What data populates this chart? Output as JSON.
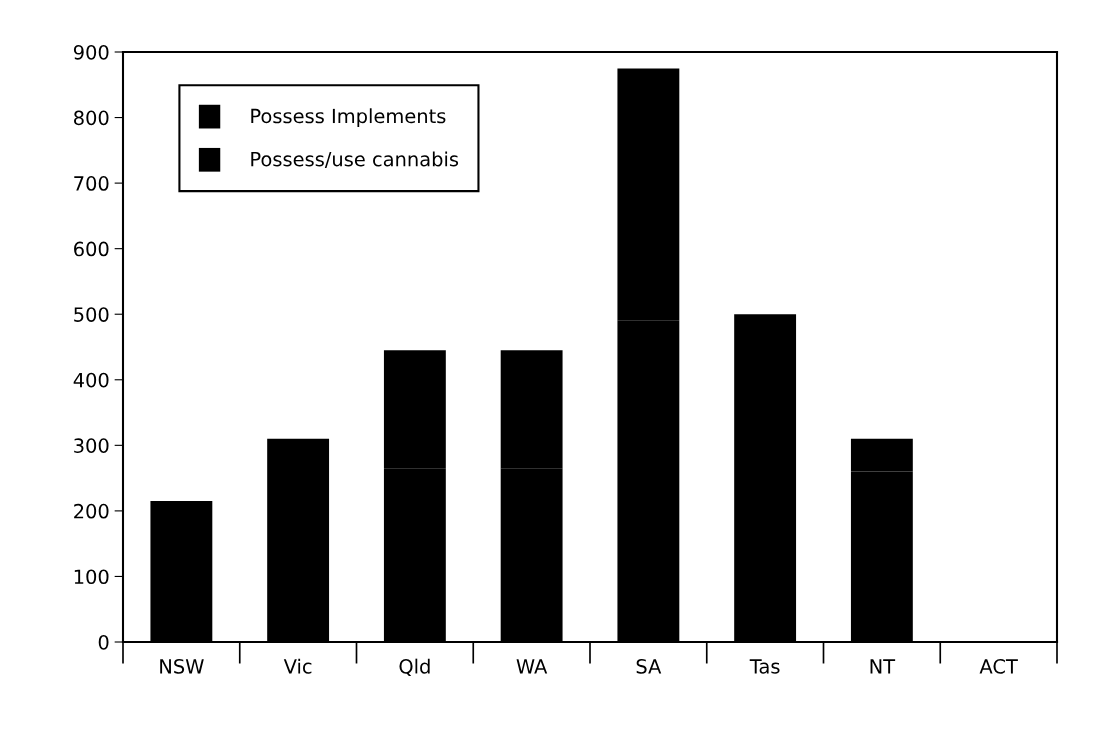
{
  "chart_data": {
    "type": "bar",
    "stacked": true,
    "categories": [
      "NSW",
      "Vic",
      "Qld",
      "WA",
      "SA",
      "Tas",
      "NT",
      "ACT"
    ],
    "series": [
      {
        "name": "Possess/use cannabis",
        "color": "#000000",
        "values": [
          215,
          310,
          265,
          265,
          490,
          500,
          260,
          0
        ]
      },
      {
        "name": "Possess Implements",
        "color": "#000000",
        "values": [
          0,
          0,
          180,
          180,
          385,
          0,
          50,
          0
        ]
      }
    ],
    "ylim": [
      0,
      900
    ],
    "yticks": [
      0,
      100,
      200,
      300,
      400,
      500,
      600,
      700,
      800,
      900
    ],
    "grid": false,
    "legend": "top left"
  }
}
